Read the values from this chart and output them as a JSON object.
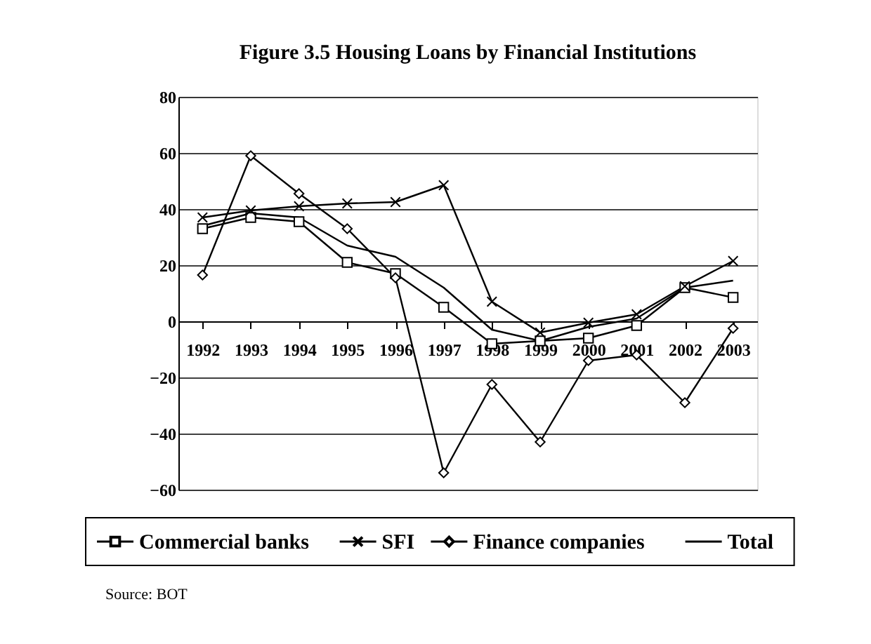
{
  "chart_data": {
    "type": "line",
    "title": "Figure 3.5  Housing Loans by Financial Institutions",
    "categories": [
      "1992",
      "1993",
      "1994",
      "1995",
      "1996",
      "1997",
      "1998",
      "1999",
      "2000",
      "2001",
      "2002",
      "2003"
    ],
    "series": [
      {
        "name": "Commercial banks",
        "color": "#000000",
        "marker": "square",
        "values": [
          33,
          37,
          35.5,
          21,
          17,
          5,
          -8,
          -7,
          -6,
          -1.5,
          12,
          8.5
        ]
      },
      {
        "name": "SFI",
        "color": "#000000",
        "marker": "cross",
        "values": [
          37,
          39.5,
          41,
          42,
          42.5,
          48.5,
          7,
          -4,
          -0.5,
          2.5,
          12.5,
          21.5
        ]
      },
      {
        "name": "Finance companies",
        "color": "#000000",
        "marker": "diamond",
        "values": [
          16.5,
          59,
          45.5,
          33,
          15.5,
          -54,
          -22.5,
          -43,
          -14,
          -12,
          -29,
          -2.5
        ]
      },
      {
        "name": "Total",
        "color": "#000000",
        "marker": "none",
        "values": [
          34,
          38.5,
          37,
          27,
          23,
          12,
          -3,
          -7,
          -2,
          1,
          12,
          14.5
        ]
      }
    ],
    "ylim": [
      -60,
      80
    ],
    "yticks": [
      -60,
      -40,
      -20,
      0,
      20,
      40,
      60,
      80
    ],
    "grid": "y",
    "legend": "bottom",
    "line_style": "solid",
    "annotations": [
      "Source: BOT"
    ]
  }
}
